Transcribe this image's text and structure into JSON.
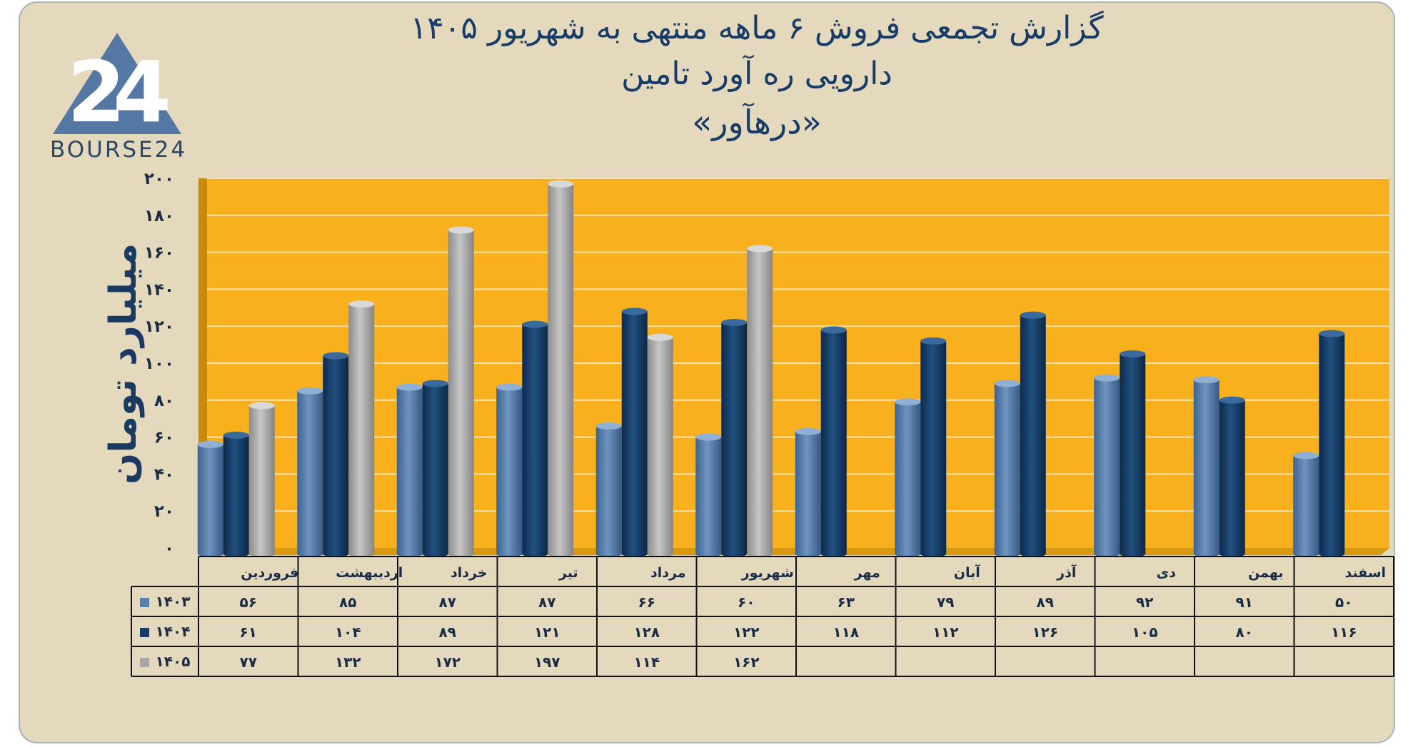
{
  "header": {
    "title_line1": "گزارش تجمعی فروش ۶ ماهه منتهی به شهریور ۱۴۰۵",
    "title_line2": "دارویی ره آورد تامین",
    "title_line3": "«درهآور»"
  },
  "logo": {
    "mark": "24",
    "text": "BOURSE24",
    "icon": "triangle-logo-icon"
  },
  "colors": {
    "background": "#e4d8bd",
    "plot_background": "#f8b11c",
    "series_1403": "#5a7fa8",
    "series_1404": "#173c67",
    "series_1405": "#a7a7a7"
  },
  "chart_data": {
    "type": "bar",
    "title": "گزارش تجمعی فروش ۶ ماهه منتهی به شهریور ۱۴۰۵",
    "subtitle": "دارویی ره آورد تامین «درهآور»",
    "xlabel": "",
    "ylabel": "میلیارد تومان",
    "ylim": [
      0,
      200
    ],
    "yticks": [
      0,
      20,
      40,
      60,
      80,
      100,
      120,
      140,
      160,
      180,
      200
    ],
    "ytick_labels": [
      "۰",
      "۲۰",
      "۴۰",
      "۶۰",
      "۸۰",
      "۱۰۰",
      "۱۲۰",
      "۱۴۰",
      "۱۶۰",
      "۱۸۰",
      "۲۰۰"
    ],
    "grid": true,
    "legend": "data-table-left",
    "categories": [
      "فروردین",
      "اردیبهشت",
      "خرداد",
      "تیر",
      "مرداد",
      "شهریور",
      "مهر",
      "آبان",
      "آذر",
      "دی",
      "بهمن",
      "اسفند"
    ],
    "series": [
      {
        "name": "۱۴۰۳",
        "values": [
          56,
          85,
          87,
          87,
          66,
          60,
          63,
          79,
          89,
          92,
          91,
          50
        ],
        "labels": [
          "۵۶",
          "۸۵",
          "۸۷",
          "۸۷",
          "۶۶",
          "۶۰",
          "۶۳",
          "۷۹",
          "۸۹",
          "۹۲",
          "۹۱",
          "۵۰"
        ]
      },
      {
        "name": "۱۴۰۴",
        "values": [
          61,
          104,
          89,
          121,
          128,
          122,
          118,
          112,
          126,
          105,
          80,
          116
        ],
        "labels": [
          "۶۱",
          "۱۰۴",
          "۸۹",
          "۱۲۱",
          "۱۲۸",
          "۱۲۲",
          "۱۱۸",
          "۱۱۲",
          "۱۲۶",
          "۱۰۵",
          "۸۰",
          "۱۱۶"
        ]
      },
      {
        "name": "۱۴۰۵",
        "values": [
          77,
          132,
          172,
          197,
          114,
          162,
          null,
          null,
          null,
          null,
          null,
          null
        ],
        "labels": [
          "۷۷",
          "۱۳۲",
          "۱۷۲",
          "۱۹۷",
          "۱۱۴",
          "۱۶۲",
          "",
          "",
          "",
          "",
          "",
          ""
        ]
      }
    ]
  }
}
